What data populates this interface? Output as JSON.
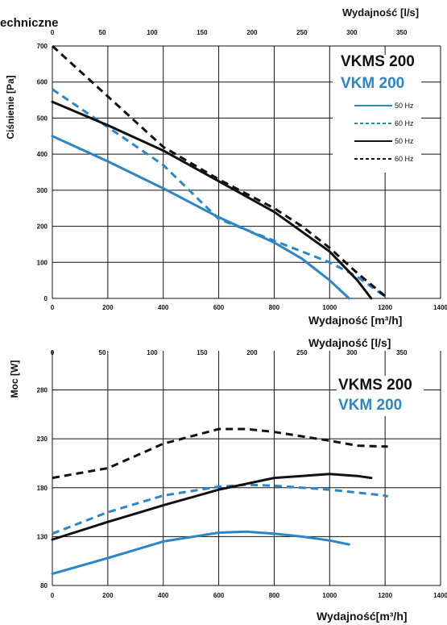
{
  "header": {
    "fragment": "echniczne"
  },
  "colors": {
    "blue": "#2b86c8",
    "black": "#111111"
  },
  "charts": [
    {
      "id": "pressure",
      "model_black": "VKMS 200",
      "model_blue": "VKM 200",
      "ylabel": "Ciśnienie [Pa]",
      "top_axis_label": "Wydajność [l/s]",
      "bottom_axis_label": "Wydajność [m³/h]",
      "x_ticks": [
        "0",
        "200",
        "400",
        "600",
        "800",
        "1000",
        "1200",
        "1400"
      ],
      "y_ticks": [
        "0",
        "100",
        "200",
        "300",
        "400",
        "500",
        "600",
        "700"
      ],
      "top_ticks": [
        "0",
        "50",
        "100",
        "150",
        "200",
        "250",
        "300",
        "350"
      ],
      "legend": [
        {
          "label": "50 Hz",
          "color": "blue",
          "dash": false
        },
        {
          "label": "60 Hz",
          "color": "blue",
          "dash": true
        },
        {
          "label": "50 Hz",
          "color": "black",
          "dash": false
        },
        {
          "label": "60 Hz",
          "color": "black",
          "dash": true
        }
      ]
    },
    {
      "id": "power",
      "model_black": "VKMS 200",
      "model_blue": "VKM 200",
      "ylabel": "Moc [W]",
      "top_axis_label": "Wydajność [l/s]",
      "bottom_axis_label": "Wydajność[m³/h]",
      "x_ticks": [
        "0",
        "200",
        "400",
        "600",
        "800",
        "1000",
        "1200",
        "1400"
      ],
      "y_ticks": [
        "80",
        "130",
        "180",
        "230",
        "280"
      ],
      "top_ticks": [
        "0",
        "50",
        "100",
        "150",
        "200",
        "250",
        "300",
        "350"
      ]
    }
  ],
  "chart_data": [
    {
      "type": "line",
      "xlabel": "Wydajność [m³/h]",
      "ylabel": "Ciśnienie [Pa]",
      "xlim": [
        0,
        1400
      ],
      "ylim": [
        0,
        700
      ],
      "series": [
        {
          "name": "VKM 200 50 Hz",
          "color": "blue",
          "dash": false,
          "x": [
            0,
            200,
            400,
            600,
            800,
            900,
            1000,
            1070
          ],
          "y": [
            450,
            380,
            305,
            225,
            155,
            110,
            50,
            0
          ]
        },
        {
          "name": "VKM 200 60 Hz",
          "color": "blue",
          "dash": true,
          "x": [
            0,
            200,
            400,
            600,
            800,
            900,
            1000,
            1100,
            1210
          ],
          "y": [
            580,
            475,
            370,
            220,
            160,
            130,
            100,
            60,
            0
          ]
        },
        {
          "name": "VKMS 200 50 Hz",
          "color": "black",
          "dash": false,
          "x": [
            0,
            200,
            400,
            600,
            800,
            900,
            1000,
            1100,
            1150
          ],
          "y": [
            545,
            480,
            410,
            325,
            240,
            185,
            130,
            50,
            0
          ]
        },
        {
          "name": "VKMS 200 60 Hz",
          "color": "black",
          "dash": true,
          "x": [
            0,
            200,
            400,
            600,
            800,
            900,
            1000,
            1100,
            1210
          ],
          "y": [
            700,
            560,
            420,
            330,
            250,
            200,
            140,
            70,
            0
          ]
        }
      ]
    },
    {
      "type": "line",
      "xlabel": "Wydajność[m³/h]",
      "ylabel": "Moc [W]",
      "xlim": [
        0,
        1400
      ],
      "ylim": [
        80,
        320
      ],
      "series": [
        {
          "name": "VKM 200 50 Hz",
          "color": "blue",
          "dash": false,
          "x": [
            0,
            200,
            400,
            600,
            700,
            800,
            900,
            1000,
            1070
          ],
          "y": [
            92,
            108,
            125,
            134,
            135,
            133,
            130,
            126,
            122
          ]
        },
        {
          "name": "VKM 200 60 Hz",
          "color": "blue",
          "dash": true,
          "x": [
            0,
            200,
            400,
            600,
            700,
            800,
            1000,
            1200,
            1210
          ],
          "y": [
            133,
            155,
            172,
            181,
            183,
            182,
            178,
            172,
            171
          ]
        },
        {
          "name": "VKMS 200 50 Hz",
          "color": "black",
          "dash": false,
          "x": [
            0,
            200,
            400,
            600,
            800,
            1000,
            1100,
            1150
          ],
          "y": [
            127,
            145,
            162,
            178,
            190,
            194,
            192,
            190
          ]
        },
        {
          "name": "VKMS 200 60 Hz",
          "color": "black",
          "dash": true,
          "x": [
            0,
            200,
            400,
            600,
            700,
            800,
            1000,
            1100,
            1210
          ],
          "y": [
            190,
            200,
            225,
            240,
            240,
            237,
            228,
            223,
            222
          ]
        }
      ]
    }
  ]
}
